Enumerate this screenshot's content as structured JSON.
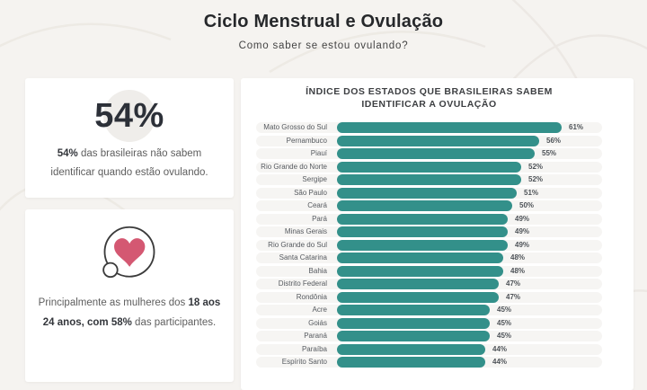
{
  "page": {
    "title": "Ciclo Menstrual e Ovulação",
    "subtitle": "Como saber se estou ovulando?"
  },
  "stat_card": {
    "headline": "54%",
    "text_bold": "54%",
    "text_rest": " das brasileiras não sabem identificar quando estão ovulando."
  },
  "audience_card": {
    "icon": "heart-icon",
    "text_prefix": "Principalmente as mulheres dos ",
    "text_bold": "18 aos 24 anos, com 58%",
    "text_suffix": " das participantes."
  },
  "chart_data": {
    "type": "bar",
    "orientation": "horizontal",
    "title": "ÍNDICE DOS ESTADOS QUE BRASILEIRAS SABEM IDENTIFICAR A OVULAÇÃO",
    "categories": [
      "Mato Grosso do Sul",
      "Pernambuco",
      "Piauí",
      "Rio Grande do Norte",
      "Sergipe",
      "São Paulo",
      "Ceará",
      "Pará",
      "Minas Gerais",
      "Rio Grande do Sul",
      "Santa Catarina",
      "Bahia",
      "Distrito Federal",
      "Rondônia",
      "Acre",
      "Goiás",
      "Paraná",
      "Paraíba",
      "Espírito Santo"
    ],
    "values": [
      61,
      56,
      55,
      52,
      52,
      51,
      50,
      49,
      49,
      49,
      48,
      48,
      47,
      47,
      45,
      45,
      45,
      44,
      44
    ],
    "value_suffix": "%",
    "xlim": [
      0,
      100
    ],
    "grid": false,
    "legend": false,
    "data_labels": true
  },
  "colors": {
    "accent_teal": "#33908a",
    "row_track": "#f6f5f3",
    "heart_pink": "#d45872",
    "stat_circle": "#efedea",
    "page_background": "#f5f3f0",
    "card_background": "#ffffff"
  }
}
